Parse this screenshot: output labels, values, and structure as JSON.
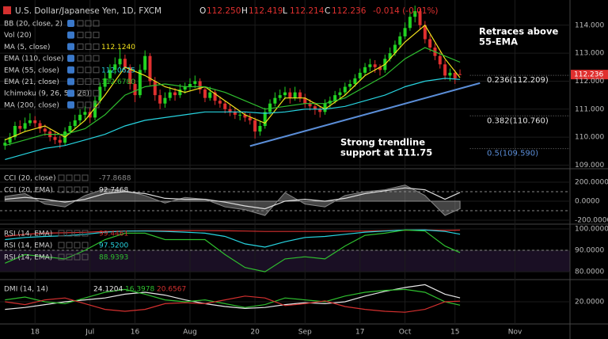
{
  "chart_data": {
    "type": "candlestick",
    "title": "U.S. Dollar/Japanese Yen, 1D, FXCM",
    "quote": [
      {
        "key": "O",
        "value": "112.250"
      },
      {
        "key": "H",
        "value": "112.419"
      },
      {
        "key": "L",
        "value": "112.214"
      },
      {
        "key": "C",
        "value": "112.236"
      }
    ],
    "change": "-0.014 (-0.01%)",
    "up_color": "#22d222",
    "down_color": "#e0302f",
    "xlim": [
      -1,
      113
    ],
    "xticks": [
      {
        "value": 6,
        "label": "18"
      },
      {
        "value": 17,
        "label": "Jul"
      },
      {
        "value": 26,
        "label": "16"
      },
      {
        "value": 37,
        "label": "Aug"
      },
      {
        "value": 50,
        "label": "20"
      },
      {
        "value": 60,
        "label": "Sep"
      },
      {
        "value": 71,
        "label": "17"
      },
      {
        "value": 80,
        "label": "Oct"
      },
      {
        "value": 90,
        "label": "15"
      },
      {
        "value": 102,
        "label": "Nov"
      }
    ],
    "ylim": [
      108.9,
      114.9
    ],
    "yticks": [
      {
        "value": 114,
        "label": "114.000"
      },
      {
        "value": 113,
        "label": "113.000"
      },
      {
        "value": 112,
        "label": "112.000"
      },
      {
        "value": 111,
        "label": "111.000"
      },
      {
        "value": 110,
        "label": "110.000"
      },
      {
        "value": 109,
        "label": "109.000"
      }
    ],
    "ohlc": [
      [
        109.7,
        109.95,
        109.55,
        109.8
      ],
      [
        109.8,
        110.15,
        109.7,
        110.0
      ],
      [
        110.0,
        110.55,
        109.9,
        110.4
      ],
      [
        110.4,
        110.6,
        110.15,
        110.3
      ],
      [
        110.3,
        110.7,
        110.2,
        110.5
      ],
      [
        110.5,
        110.85,
        110.4,
        110.6
      ],
      [
        110.6,
        110.75,
        110.35,
        110.5
      ],
      [
        110.5,
        110.6,
        110.15,
        110.3
      ],
      [
        110.3,
        110.45,
        110.05,
        110.2
      ],
      [
        110.2,
        110.3,
        109.85,
        110.0
      ],
      [
        110.0,
        110.2,
        109.75,
        109.9
      ],
      [
        109.9,
        110.05,
        109.6,
        109.8
      ],
      [
        109.8,
        110.35,
        109.7,
        110.2
      ],
      [
        110.2,
        110.55,
        110.1,
        110.4
      ],
      [
        110.4,
        110.8,
        110.3,
        110.6
      ],
      [
        110.6,
        111.0,
        110.45,
        110.8
      ],
      [
        110.8,
        111.1,
        110.6,
        110.9
      ],
      [
        110.9,
        111.05,
        110.5,
        110.7
      ],
      [
        110.7,
        111.45,
        110.6,
        111.3
      ],
      [
        111.3,
        111.95,
        111.2,
        111.8
      ],
      [
        111.8,
        112.3,
        111.65,
        112.1
      ],
      [
        112.1,
        112.6,
        111.95,
        112.4
      ],
      [
        112.4,
        112.85,
        112.25,
        112.6
      ],
      [
        112.6,
        113.15,
        112.45,
        112.8
      ],
      [
        112.8,
        112.95,
        112.3,
        112.5
      ],
      [
        112.5,
        112.6,
        111.7,
        111.9
      ],
      [
        111.9,
        112.05,
        111.25,
        111.5
      ],
      [
        111.5,
        112.6,
        111.4,
        112.4
      ],
      [
        112.4,
        113.1,
        112.3,
        112.9
      ],
      [
        112.9,
        113.0,
        111.85,
        112.0
      ],
      [
        112.0,
        112.15,
        111.3,
        111.5
      ],
      [
        111.5,
        111.7,
        111.0,
        111.2
      ],
      [
        111.2,
        111.6,
        111.05,
        111.4
      ],
      [
        111.4,
        111.8,
        111.3,
        111.6
      ],
      [
        111.6,
        111.75,
        111.3,
        111.5
      ],
      [
        111.5,
        111.9,
        111.4,
        111.7
      ],
      [
        111.7,
        111.95,
        111.55,
        111.8
      ],
      [
        111.8,
        112.1,
        111.65,
        111.9
      ],
      [
        111.9,
        112.2,
        111.75,
        112.0
      ],
      [
        112.0,
        112.1,
        111.55,
        111.7
      ],
      [
        111.7,
        111.8,
        111.25,
        111.4
      ],
      [
        111.4,
        111.8,
        111.3,
        111.6
      ],
      [
        111.6,
        111.7,
        111.15,
        111.3
      ],
      [
        111.3,
        111.45,
        111.05,
        111.2
      ],
      [
        111.2,
        111.3,
        110.85,
        111.0
      ],
      [
        111.0,
        111.15,
        110.75,
        110.9
      ],
      [
        110.9,
        111.05,
        110.65,
        110.8
      ],
      [
        110.8,
        110.95,
        110.6,
        110.8
      ],
      [
        110.8,
        110.9,
        110.55,
        110.7
      ],
      [
        110.7,
        110.85,
        110.45,
        110.6
      ],
      [
        110.6,
        110.7,
        109.95,
        110.2
      ],
      [
        110.2,
        110.55,
        110.05,
        110.4
      ],
      [
        110.4,
        111.05,
        110.3,
        110.9
      ],
      [
        110.9,
        111.35,
        110.8,
        111.2
      ],
      [
        111.2,
        111.6,
        111.1,
        111.4
      ],
      [
        111.4,
        111.7,
        111.3,
        111.5
      ],
      [
        111.5,
        111.8,
        111.35,
        111.6
      ],
      [
        111.6,
        111.75,
        111.2,
        111.4
      ],
      [
        111.4,
        111.8,
        111.3,
        111.6
      ],
      [
        111.6,
        111.7,
        111.25,
        111.4
      ],
      [
        111.4,
        111.55,
        111.05,
        111.2
      ],
      [
        111.2,
        111.35,
        110.95,
        111.1
      ],
      [
        111.1,
        111.25,
        110.8,
        111.0
      ],
      [
        111.0,
        111.1,
        110.7,
        110.9
      ],
      [
        110.9,
        111.35,
        110.8,
        111.2
      ],
      [
        111.2,
        111.45,
        111.05,
        111.3
      ],
      [
        111.3,
        111.65,
        111.2,
        111.5
      ],
      [
        111.5,
        111.75,
        111.35,
        111.6
      ],
      [
        111.6,
        111.95,
        111.5,
        111.8
      ],
      [
        111.8,
        112.05,
        111.65,
        111.9
      ],
      [
        111.9,
        112.25,
        111.8,
        112.1
      ],
      [
        112.1,
        112.45,
        112.0,
        112.3
      ],
      [
        112.3,
        112.65,
        112.2,
        112.5
      ],
      [
        112.5,
        112.8,
        112.35,
        112.6
      ],
      [
        112.6,
        112.75,
        112.3,
        112.5
      ],
      [
        112.5,
        112.6,
        112.2,
        112.4
      ],
      [
        112.4,
        112.95,
        112.3,
        112.8
      ],
      [
        112.8,
        113.2,
        112.7,
        113.0
      ],
      [
        113.0,
        113.45,
        112.9,
        113.3
      ],
      [
        113.3,
        113.75,
        113.2,
        113.6
      ],
      [
        113.6,
        114.1,
        113.5,
        113.9
      ],
      [
        113.9,
        114.5,
        113.8,
        114.3
      ],
      [
        114.3,
        114.7,
        114.1,
        114.5
      ],
      [
        114.5,
        114.6,
        113.85,
        114.0
      ],
      [
        114.0,
        114.15,
        113.35,
        113.5
      ],
      [
        113.5,
        113.65,
        113.05,
        113.2
      ],
      [
        113.2,
        113.35,
        112.75,
        112.9
      ],
      [
        112.9,
        113.05,
        112.45,
        112.6
      ],
      [
        112.6,
        112.75,
        112.05,
        112.2
      ],
      [
        112.2,
        112.45,
        112.0,
        112.3
      ],
      [
        112.3,
        112.4,
        111.9,
        112.1
      ],
      [
        112.25,
        112.419,
        112.214,
        112.236
      ]
    ],
    "indicator_x": [
      0,
      4,
      8,
      12,
      16,
      20,
      24,
      28,
      32,
      36,
      40,
      44,
      48,
      52,
      56,
      60,
      64,
      68,
      72,
      76,
      80,
      84,
      88,
      91
    ],
    "overlays": [
      {
        "name": "BB (20, close, 2)"
      },
      {
        "name": "Vol (20)"
      },
      {
        "name": "MA (5, close)",
        "color": "#f2e21c",
        "value_label": "112.1240",
        "values": [
          109.9,
          110.2,
          110.4,
          110.0,
          110.6,
          111.5,
          112.5,
          112.2,
          111.8,
          111.6,
          111.8,
          111.3,
          110.8,
          110.5,
          111.4,
          111.4,
          111.0,
          111.5,
          112.2,
          112.6,
          113.4,
          114.0,
          112.8,
          112.124
        ]
      },
      {
        "name": "EMA (110, close)"
      },
      {
        "name": "EMA (55, close)",
        "color": "#27d4e0",
        "value_label": "112.0625",
        "values": [
          109.2,
          109.4,
          109.6,
          109.7,
          109.9,
          110.1,
          110.4,
          110.6,
          110.7,
          110.8,
          110.9,
          110.9,
          110.9,
          110.85,
          110.9,
          111.0,
          111.0,
          111.1,
          111.3,
          111.5,
          111.8,
          112.0,
          112.1,
          112.0625
        ]
      },
      {
        "name": "EMA (21, close)",
        "color": "#2fbf2f",
        "value_label": "112.6780",
        "values": [
          109.7,
          109.9,
          110.1,
          110.1,
          110.3,
          110.8,
          111.5,
          111.8,
          111.9,
          111.8,
          111.8,
          111.6,
          111.3,
          111.0,
          111.1,
          111.2,
          111.2,
          111.4,
          111.8,
          112.2,
          112.8,
          113.2,
          112.9,
          112.678
        ]
      },
      {
        "name": "Ichimoku (9, 26, 52, 26)"
      },
      {
        "name": "MA (200, close)"
      }
    ],
    "trendline": {
      "x": [
        49,
        95
      ],
      "values": [
        109.68,
        111.93
      ],
      "color": "#5b8ed8"
    },
    "fib_levels": [
      {
        "value": 112.209,
        "label": "0.236(112.209)",
        "color": "#e6e6e6"
      },
      {
        "value": 110.76,
        "label": "0.382(110.760)",
        "color": "#e6e6e6"
      },
      {
        "value": 109.59,
        "label": "0.5(109.590)",
        "color": "#5b8ed8"
      }
    ],
    "annotations": [
      {
        "lines": [
          "Retraces above",
          "55-EMA"
        ]
      },
      {
        "lines": [
          "Strong trendline",
          "support at 111.75"
        ]
      }
    ],
    "panels": [
      {
        "type": "cci",
        "ylim": [
          -233,
          333
        ],
        "yticks": [
          {
            "value": 200,
            "label": "200.0000"
          },
          {
            "value": 0,
            "label": "0.0000"
          },
          {
            "value": -200,
            "label": "-200.0000"
          }
        ],
        "levels": [
          100,
          -100
        ],
        "series": [
          {
            "name": "CCI (20, close)",
            "color": "#8a8a8a",
            "fill": true,
            "value_label": "-77.8688",
            "values": [
              50,
              80,
              -30,
              -60,
              60,
              130,
              110,
              60,
              -20,
              40,
              20,
              -60,
              -90,
              -150,
              90,
              -30,
              -60,
              60,
              100,
              120,
              170,
              60,
              -150,
              -77.8688
            ]
          },
          {
            "name": "CCI (20, EMA)",
            "color": "#dddddd",
            "value_label": "92.7468",
            "values": [
              20,
              40,
              20,
              -10,
              20,
              80,
              100,
              80,
              30,
              20,
              20,
              -10,
              -50,
              -80,
              0,
              20,
              0,
              30,
              80,
              110,
              140,
              120,
              20,
              92.7468
            ]
          }
        ]
      },
      {
        "type": "rsi",
        "ylim": [
          76.7,
          101.85
        ],
        "yticks": [
          {
            "value": 100,
            "label": "100.0000"
          },
          {
            "value": 90,
            "label": "90.0000"
          },
          {
            "value": 80,
            "label": "80.0000"
          }
        ],
        "levels": [
          90
        ],
        "series": [
          {
            "name": "RSI (14, EMA)",
            "color": "#d4302f",
            "value_label": "99.4461",
            "values": [
              96.5,
              97.5,
              98,
              98.2,
              98.4,
              98.8,
              99,
              99.1,
              99.1,
              99.2,
              99.2,
              99.1,
              99,
              98.8,
              98.8,
              98.8,
              98.8,
              98.9,
              99,
              99.2,
              99.4,
              99.5,
              99.3,
              99.4461
            ]
          },
          {
            "name": "RSI (14, EMA)",
            "color": "#27d4e0",
            "value_label": "97.5200",
            "values": [
              95,
              96,
              96.5,
              96.8,
              97.5,
              98.5,
              99,
              99,
              98.8,
              98.5,
              98,
              96.5,
              93,
              91.5,
              94,
              96,
              96.5,
              97.5,
              98.5,
              99,
              99.5,
              99.5,
              98.8,
              97.52
            ]
          },
          {
            "name": "RSI (14, EMA)",
            "color": "#2fbf2f",
            "value_label": "88.9393",
            "values": [
              84,
              88,
              87,
              86,
              90,
              95,
              98,
              98,
              95,
              95,
              95,
              88,
              82,
              80,
              86,
              87,
              86,
              92,
              97,
              98,
              99.5,
              99,
              92,
              88.9393
            ]
          }
        ]
      },
      {
        "type": "dmi",
        "ylim": [
          -2.5,
          42.5
        ],
        "yticks": [
          {
            "value": 20,
            "label": "20.0000"
          }
        ],
        "name": "DMI (14, 14)",
        "series": [
          {
            "color": "#e8e8e8",
            "value_label": "24.1204",
            "values": [
              12,
              14,
              17,
              20,
              22,
              24,
              28,
              30,
              27,
              22,
              18,
              15,
              13,
              14,
              17,
              19,
              18,
              20,
              26,
              31,
              35,
              38,
              28,
              24.1204
            ]
          },
          {
            "color": "#2fbf2f",
            "value_label": "16.3978",
            "values": [
              22,
              25,
              20,
              18,
              24,
              30,
              33,
              28,
              22,
              20,
              22,
              18,
              14,
              17,
              24,
              22,
              20,
              26,
              30,
              32,
              33,
              30,
              20,
              16.3978
            ]
          },
          {
            "color": "#d4302f",
            "value_label": "20.6567",
            "values": [
              20,
              17,
              22,
              24,
              18,
              12,
              10,
              12,
              18,
              19,
              18,
              22,
              26,
              24,
              16,
              18,
              21,
              15,
              12,
              10,
              9,
              12,
              20,
              20.6567
            ]
          }
        ]
      }
    ]
  }
}
